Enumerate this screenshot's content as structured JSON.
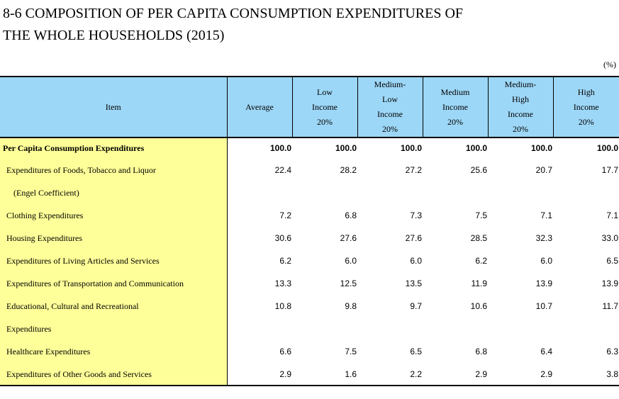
{
  "title_line1": "8-6  COMPOSITION OF PER CAPITA CONSUMPTION EXPENDITURES OF",
  "title_line2": "THE WHOLE HOUSEHOLDS (2015)",
  "unit": "(%)",
  "headers": {
    "item": "Item",
    "average": "Average",
    "low": [
      "Low",
      "Income",
      "20%"
    ],
    "medium_low": [
      "Medium-",
      "Low",
      "Income",
      "20%"
    ],
    "medium": [
      "Medium",
      "Income",
      "20%"
    ],
    "medium_high": [
      "Medium-",
      "High",
      "Income",
      "20%"
    ],
    "high": [
      "High",
      "Income",
      "20%"
    ]
  },
  "rows": [
    {
      "label": "Per Capita Consumption Expenditures",
      "values": [
        "100.0",
        "100.0",
        "100.0",
        "100.0",
        "100.0",
        "100.0"
      ]
    },
    {
      "label": "Expenditures of Foods, Tobacco and Liquor",
      "values": [
        "22.4",
        "28.2",
        "27.2",
        "25.6",
        "20.7",
        "17.7"
      ]
    },
    {
      "label": "(Engel Coefficient)",
      "values": [
        "",
        "",
        "",
        "",
        "",
        ""
      ]
    },
    {
      "label": "Clothing Expenditures",
      "values": [
        "7.2",
        "6.8",
        "7.3",
        "7.5",
        "7.1",
        "7.1"
      ]
    },
    {
      "label": "Housing Expenditures",
      "values": [
        "30.6",
        "27.6",
        "27.6",
        "28.5",
        "32.3",
        "33.0"
      ]
    },
    {
      "label": "Expenditures of Living Articles and Services",
      "values": [
        "6.2",
        "6.0",
        "6.0",
        "6.2",
        "6.0",
        "6.5"
      ]
    },
    {
      "label": "Expenditures of Transportation and Communication",
      "values": [
        "13.3",
        "12.5",
        "13.5",
        "11.9",
        "13.9",
        "13.9"
      ]
    },
    {
      "label": "Educational, Cultural and Recreational",
      "values": [
        "10.8",
        "9.8",
        "9.7",
        "10.6",
        "10.7",
        "11.7"
      ]
    },
    {
      "label": "Expenditures",
      "values": [
        "",
        "",
        "",
        "",
        "",
        ""
      ]
    },
    {
      "label": "Healthcare Expenditures",
      "values": [
        "6.6",
        "7.5",
        "6.5",
        "6.8",
        "6.4",
        "6.3"
      ]
    },
    {
      "label": "Expenditures of Other Goods and Services",
      "values": [
        "2.9",
        "1.6",
        "2.2",
        "2.9",
        "2.9",
        "3.8"
      ]
    }
  ]
}
